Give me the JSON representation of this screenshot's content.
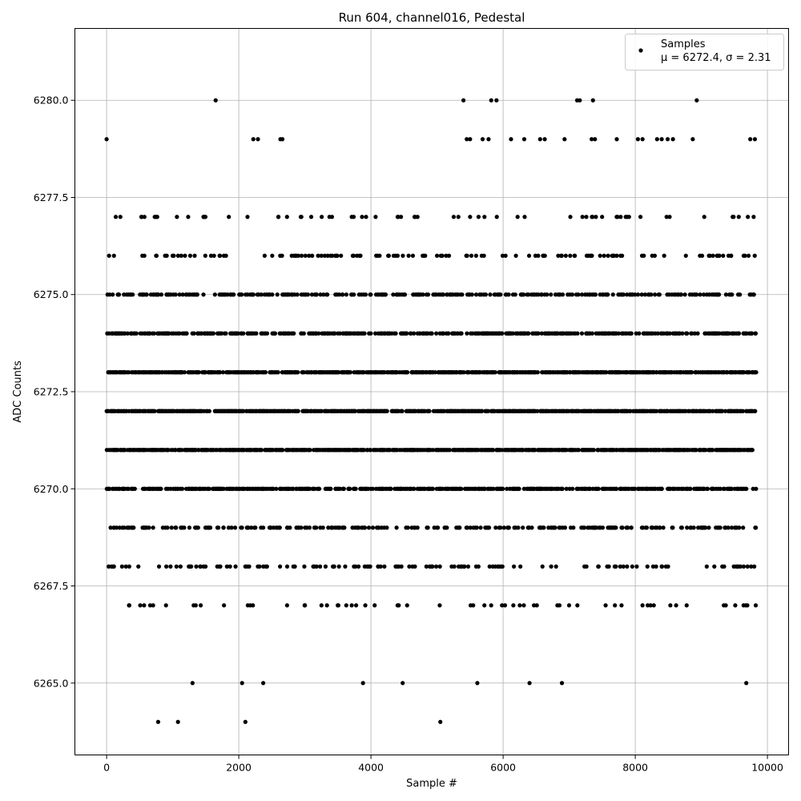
{
  "chart_data": {
    "type": "scatter",
    "title": "Run 604, channel016, Pedestal",
    "xlabel": "Sample #",
    "ylabel": "ADC Counts",
    "xlim": [
      -480,
      10320
    ],
    "ylim": [
      6263.15,
      6281.85
    ],
    "xticks": [
      0,
      2000,
      4000,
      6000,
      8000,
      10000
    ],
    "xtick_labels": [
      "0",
      "2000",
      "4000",
      "6000",
      "8000",
      "10000"
    ],
    "yticks": [
      6265.0,
      6267.5,
      6270.0,
      6272.5,
      6275.0,
      6277.5,
      6280.0
    ],
    "ytick_labels": [
      "6265.0",
      "6267.5",
      "6270.0",
      "6272.5",
      "6275.0",
      "6277.5",
      "6280.0"
    ],
    "grid": true,
    "legend_position": "top-right",
    "legend_label": "Samples",
    "legend_stats": "μ = 6272.4, σ = 2.31",
    "marker_color": "#000000",
    "n_samples": 9830,
    "mean": 6272.4,
    "sigma": 2.31,
    "level_density": [
      {
        "y": 6264,
        "density": 0.001
      },
      {
        "y": 6265,
        "density": 0.002
      },
      {
        "y": 6266,
        "density": 0.006
      },
      {
        "y": 6267,
        "density": 0.016
      },
      {
        "y": 6268,
        "density": 0.038
      },
      {
        "y": 6269,
        "density": 0.075
      },
      {
        "y": 6270,
        "density": 0.125
      },
      {
        "y": 6271,
        "density": 0.165
      },
      {
        "y": 6272,
        "density": 0.175
      },
      {
        "y": 6273,
        "density": 0.165
      },
      {
        "y": 6274,
        "density": 0.125
      },
      {
        "y": 6275,
        "density": 0.075
      },
      {
        "y": 6276,
        "density": 0.038
      },
      {
        "y": 6277,
        "density": 0.016
      },
      {
        "y": 6278,
        "density": 0.006
      },
      {
        "y": 6279,
        "density": 0.002
      },
      {
        "y": 6280,
        "density": 0.001
      }
    ],
    "rare_points": [
      {
        "x": 780,
        "y": 6264
      },
      {
        "x": 1080,
        "y": 6264
      },
      {
        "x": 2100,
        "y": 6264
      },
      {
        "x": 5050,
        "y": 6264
      },
      {
        "x": 1300,
        "y": 6265
      },
      {
        "x": 2050,
        "y": 6265
      },
      {
        "x": 2370,
        "y": 6265
      },
      {
        "x": 3880,
        "y": 6265
      },
      {
        "x": 4480,
        "y": 6265
      },
      {
        "x": 5610,
        "y": 6265
      },
      {
        "x": 6400,
        "y": 6265
      },
      {
        "x": 6890,
        "y": 6265
      },
      {
        "x": 9680,
        "y": 6265
      },
      {
        "x": 1650,
        "y": 6280
      },
      {
        "x": 5400,
        "y": 6280
      },
      {
        "x": 5820,
        "y": 6280
      },
      {
        "x": 5900,
        "y": 6280
      },
      {
        "x": 7120,
        "y": 6280
      },
      {
        "x": 7160,
        "y": 6280
      },
      {
        "x": 7360,
        "y": 6280
      },
      {
        "x": 8930,
        "y": 6280
      },
      {
        "x": 0,
        "y": 6279
      },
      {
        "x": 2220,
        "y": 6279
      },
      {
        "x": 2290,
        "y": 6279
      },
      {
        "x": 2630,
        "y": 6279
      },
      {
        "x": 2660,
        "y": 6279
      },
      {
        "x": 5450,
        "y": 6279
      },
      {
        "x": 5500,
        "y": 6279
      },
      {
        "x": 5690,
        "y": 6279
      },
      {
        "x": 5780,
        "y": 6279
      },
      {
        "x": 6120,
        "y": 6279
      },
      {
        "x": 6320,
        "y": 6279
      },
      {
        "x": 6560,
        "y": 6279
      },
      {
        "x": 6630,
        "y": 6279
      },
      {
        "x": 6930,
        "y": 6279
      },
      {
        "x": 7340,
        "y": 6279
      },
      {
        "x": 7390,
        "y": 6279
      },
      {
        "x": 7720,
        "y": 6279
      },
      {
        "x": 8040,
        "y": 6279
      },
      {
        "x": 8110,
        "y": 6279
      },
      {
        "x": 8330,
        "y": 6279
      },
      {
        "x": 8400,
        "y": 6279
      },
      {
        "x": 8490,
        "y": 6279
      },
      {
        "x": 8570,
        "y": 6279
      },
      {
        "x": 8870,
        "y": 6279
      },
      {
        "x": 9740,
        "y": 6279
      },
      {
        "x": 9810,
        "y": 6279
      }
    ]
  }
}
